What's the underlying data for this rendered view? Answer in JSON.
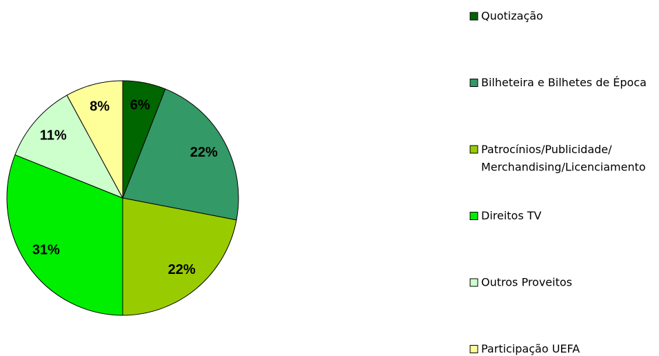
{
  "chart_data": {
    "type": "pie",
    "categories": [
      "Quotização",
      "Bilheteira e Bilhetes de Época",
      "Patrocínios/Publicidade/Merchandising/Licenciamento",
      "Direitos TV",
      "Outros Proveitos",
      "Participação UEFA"
    ],
    "values": [
      6,
      22,
      22,
      31,
      11,
      8
    ],
    "value_labels": [
      "6%",
      "22%",
      "22%",
      "31%",
      "11%",
      "8%"
    ],
    "colors": [
      "#006600",
      "#339966",
      "#99cc00",
      "#00ee00",
      "#ccffcc",
      "#ffff99"
    ],
    "legend": "right"
  }
}
